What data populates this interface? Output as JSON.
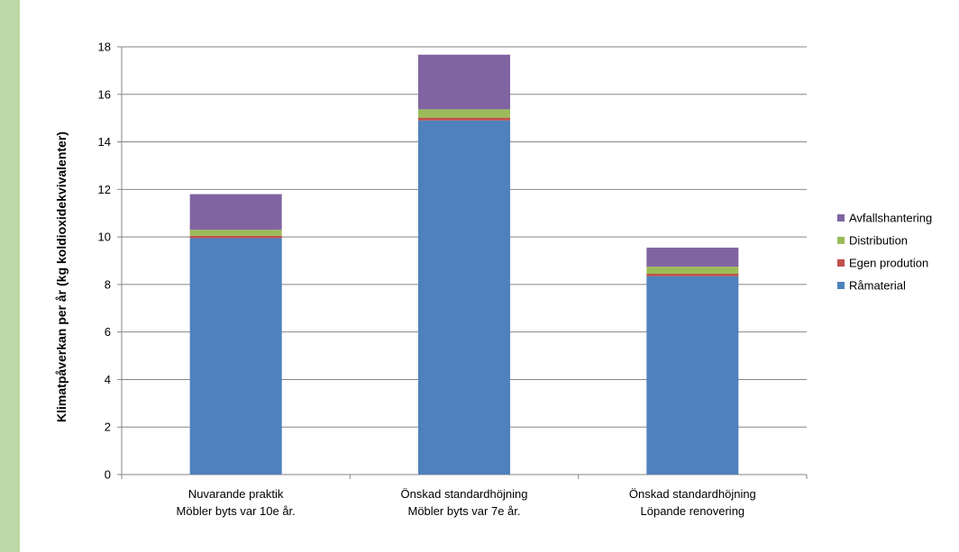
{
  "chart_data": {
    "type": "bar",
    "stacked": true,
    "title": "",
    "xlabel": "",
    "ylabel": "Klimatpåverkan per år (kg koldioxidekvivalenter)",
    "ylim": [
      0,
      18
    ],
    "yticks": [
      0,
      2,
      4,
      6,
      8,
      10,
      12,
      14,
      16,
      18
    ],
    "grid": true,
    "legend_position": "right",
    "categories": [
      [
        "Nuvarande praktik",
        "Möbler byts var 10e år."
      ],
      [
        "Önskad standardhöjning",
        "Möbler byts var 7e år."
      ],
      [
        "Önskad standardhöjning",
        "Löpande renovering"
      ]
    ],
    "series": [
      {
        "name": "Råmaterial",
        "color": "#4f81bd",
        "values": [
          9.95,
          14.9,
          8.35
        ]
      },
      {
        "name": "Egen prodution",
        "color": "#c0504d",
        "values": [
          0.1,
          0.12,
          0.1
        ]
      },
      {
        "name": "Distribution",
        "color": "#9bbb59",
        "values": [
          0.25,
          0.35,
          0.3
        ]
      },
      {
        "name": "Avfallshantering",
        "color": "#8064a2",
        "values": [
          1.5,
          2.3,
          0.8
        ]
      }
    ],
    "legend_order": [
      "Avfallshantering",
      "Distribution",
      "Egen prodution",
      "Råmaterial"
    ]
  }
}
